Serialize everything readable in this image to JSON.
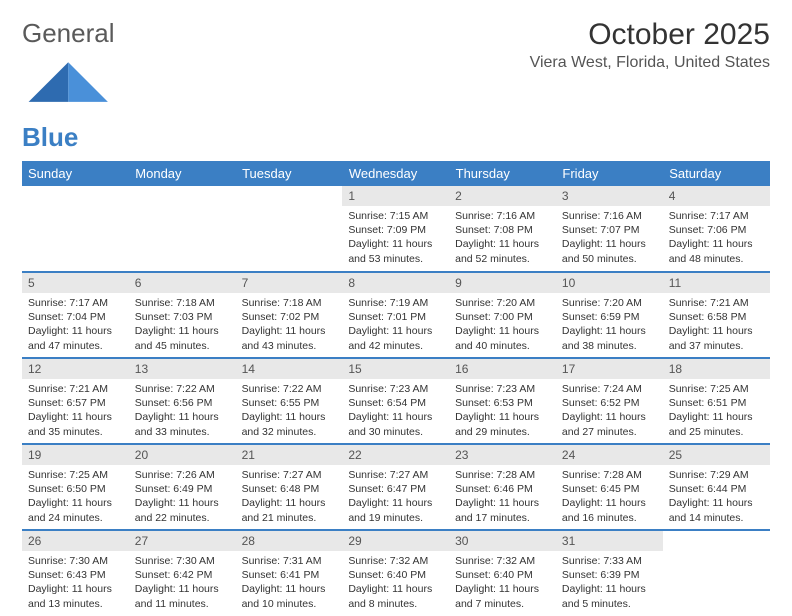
{
  "logo": {
    "text_general": "General",
    "text_blue": "Blue"
  },
  "title": "October 2025",
  "location": "Viera West, Florida, United States",
  "colors": {
    "header_bg": "#3b7fc4",
    "header_text": "#ffffff",
    "daynum_bg": "#e8e8e8",
    "row_border": "#3b7fc4",
    "logo_gray": "#5a5a5a",
    "logo_blue": "#3b7fc4"
  },
  "weekdays": [
    "Sunday",
    "Monday",
    "Tuesday",
    "Wednesday",
    "Thursday",
    "Friday",
    "Saturday"
  ],
  "weeks": [
    [
      {},
      {},
      {},
      {
        "num": "1",
        "sunrise": "7:15 AM",
        "sunset": "7:09 PM",
        "daylight": "11 hours and 53 minutes."
      },
      {
        "num": "2",
        "sunrise": "7:16 AM",
        "sunset": "7:08 PM",
        "daylight": "11 hours and 52 minutes."
      },
      {
        "num": "3",
        "sunrise": "7:16 AM",
        "sunset": "7:07 PM",
        "daylight": "11 hours and 50 minutes."
      },
      {
        "num": "4",
        "sunrise": "7:17 AM",
        "sunset": "7:06 PM",
        "daylight": "11 hours and 48 minutes."
      }
    ],
    [
      {
        "num": "5",
        "sunrise": "7:17 AM",
        "sunset": "7:04 PM",
        "daylight": "11 hours and 47 minutes."
      },
      {
        "num": "6",
        "sunrise": "7:18 AM",
        "sunset": "7:03 PM",
        "daylight": "11 hours and 45 minutes."
      },
      {
        "num": "7",
        "sunrise": "7:18 AM",
        "sunset": "7:02 PM",
        "daylight": "11 hours and 43 minutes."
      },
      {
        "num": "8",
        "sunrise": "7:19 AM",
        "sunset": "7:01 PM",
        "daylight": "11 hours and 42 minutes."
      },
      {
        "num": "9",
        "sunrise": "7:20 AM",
        "sunset": "7:00 PM",
        "daylight": "11 hours and 40 minutes."
      },
      {
        "num": "10",
        "sunrise": "7:20 AM",
        "sunset": "6:59 PM",
        "daylight": "11 hours and 38 minutes."
      },
      {
        "num": "11",
        "sunrise": "7:21 AM",
        "sunset": "6:58 PM",
        "daylight": "11 hours and 37 minutes."
      }
    ],
    [
      {
        "num": "12",
        "sunrise": "7:21 AM",
        "sunset": "6:57 PM",
        "daylight": "11 hours and 35 minutes."
      },
      {
        "num": "13",
        "sunrise": "7:22 AM",
        "sunset": "6:56 PM",
        "daylight": "11 hours and 33 minutes."
      },
      {
        "num": "14",
        "sunrise": "7:22 AM",
        "sunset": "6:55 PM",
        "daylight": "11 hours and 32 minutes."
      },
      {
        "num": "15",
        "sunrise": "7:23 AM",
        "sunset": "6:54 PM",
        "daylight": "11 hours and 30 minutes."
      },
      {
        "num": "16",
        "sunrise": "7:23 AM",
        "sunset": "6:53 PM",
        "daylight": "11 hours and 29 minutes."
      },
      {
        "num": "17",
        "sunrise": "7:24 AM",
        "sunset": "6:52 PM",
        "daylight": "11 hours and 27 minutes."
      },
      {
        "num": "18",
        "sunrise": "7:25 AM",
        "sunset": "6:51 PM",
        "daylight": "11 hours and 25 minutes."
      }
    ],
    [
      {
        "num": "19",
        "sunrise": "7:25 AM",
        "sunset": "6:50 PM",
        "daylight": "11 hours and 24 minutes."
      },
      {
        "num": "20",
        "sunrise": "7:26 AM",
        "sunset": "6:49 PM",
        "daylight": "11 hours and 22 minutes."
      },
      {
        "num": "21",
        "sunrise": "7:27 AM",
        "sunset": "6:48 PM",
        "daylight": "11 hours and 21 minutes."
      },
      {
        "num": "22",
        "sunrise": "7:27 AM",
        "sunset": "6:47 PM",
        "daylight": "11 hours and 19 minutes."
      },
      {
        "num": "23",
        "sunrise": "7:28 AM",
        "sunset": "6:46 PM",
        "daylight": "11 hours and 17 minutes."
      },
      {
        "num": "24",
        "sunrise": "7:28 AM",
        "sunset": "6:45 PM",
        "daylight": "11 hours and 16 minutes."
      },
      {
        "num": "25",
        "sunrise": "7:29 AM",
        "sunset": "6:44 PM",
        "daylight": "11 hours and 14 minutes."
      }
    ],
    [
      {
        "num": "26",
        "sunrise": "7:30 AM",
        "sunset": "6:43 PM",
        "daylight": "11 hours and 13 minutes."
      },
      {
        "num": "27",
        "sunrise": "7:30 AM",
        "sunset": "6:42 PM",
        "daylight": "11 hours and 11 minutes."
      },
      {
        "num": "28",
        "sunrise": "7:31 AM",
        "sunset": "6:41 PM",
        "daylight": "11 hours and 10 minutes."
      },
      {
        "num": "29",
        "sunrise": "7:32 AM",
        "sunset": "6:40 PM",
        "daylight": "11 hours and 8 minutes."
      },
      {
        "num": "30",
        "sunrise": "7:32 AM",
        "sunset": "6:40 PM",
        "daylight": "11 hours and 7 minutes."
      },
      {
        "num": "31",
        "sunrise": "7:33 AM",
        "sunset": "6:39 PM",
        "daylight": "11 hours and 5 minutes."
      },
      {}
    ]
  ],
  "labels": {
    "sunrise": "Sunrise:",
    "sunset": "Sunset:",
    "daylight": "Daylight:"
  }
}
